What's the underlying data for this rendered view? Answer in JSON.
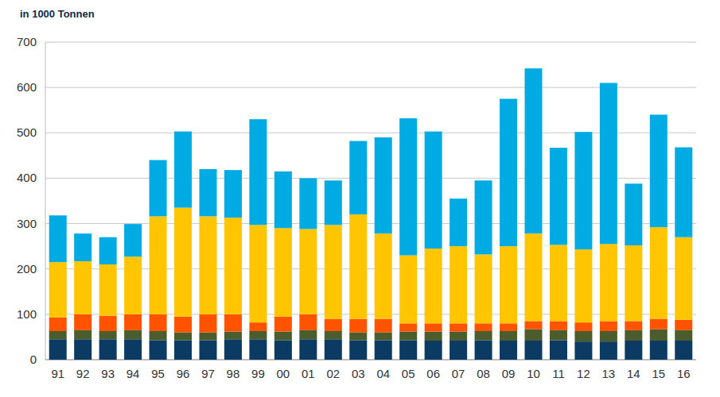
{
  "chart_data": {
    "type": "bar",
    "stacked": true,
    "grid": true,
    "title": "in 1000 Tonnen",
    "categories": [
      "91",
      "92",
      "93",
      "94",
      "95",
      "96",
      "97",
      "98",
      "99",
      "00",
      "01",
      "02",
      "03",
      "04",
      "05",
      "06",
      "07",
      "08",
      "09",
      "10",
      "11",
      "12",
      "13",
      "14",
      "15",
      "16"
    ],
    "series": [
      {
        "color": "#0b3a63",
        "values": [
          45,
          45,
          45,
          45,
          43,
          43,
          43,
          45,
          45,
          43,
          45,
          45,
          43,
          43,
          43,
          42,
          42,
          43,
          42,
          42,
          43,
          40,
          40,
          42,
          42,
          42
        ]
      },
      {
        "color": "#4b5d2c",
        "values": [
          18,
          20,
          18,
          20,
          20,
          17,
          17,
          17,
          18,
          19,
          20,
          18,
          17,
          17,
          19,
          20,
          20,
          20,
          21,
          25,
          22,
          23,
          23,
          23,
          25,
          23
        ]
      },
      {
        "color": "#ff5300",
        "values": [
          30,
          35,
          34,
          35,
          37,
          35,
          40,
          38,
          19,
          33,
          35,
          27,
          30,
          30,
          18,
          18,
          18,
          17,
          17,
          18,
          20,
          19,
          22,
          20,
          23,
          23
        ]
      },
      {
        "color": "#ffc600",
        "values": [
          122,
          117,
          113,
          127,
          216,
          240,
          216,
          213,
          215,
          195,
          188,
          207,
          230,
          188,
          150,
          165,
          170,
          152,
          170,
          193,
          168,
          161,
          170,
          167,
          202,
          182
        ]
      },
      {
        "color": "#00abe3",
        "values": [
          103,
          61,
          60,
          72,
          124,
          168,
          104,
          105,
          233,
          125,
          112,
          98,
          162,
          212,
          302,
          258,
          105,
          163,
          325,
          364,
          214,
          259,
          355,
          136,
          248,
          198
        ]
      }
    ],
    "ylim": [
      0,
      700
    ],
    "yticks": [
      0,
      100,
      200,
      300,
      400,
      500,
      600,
      700
    ]
  }
}
